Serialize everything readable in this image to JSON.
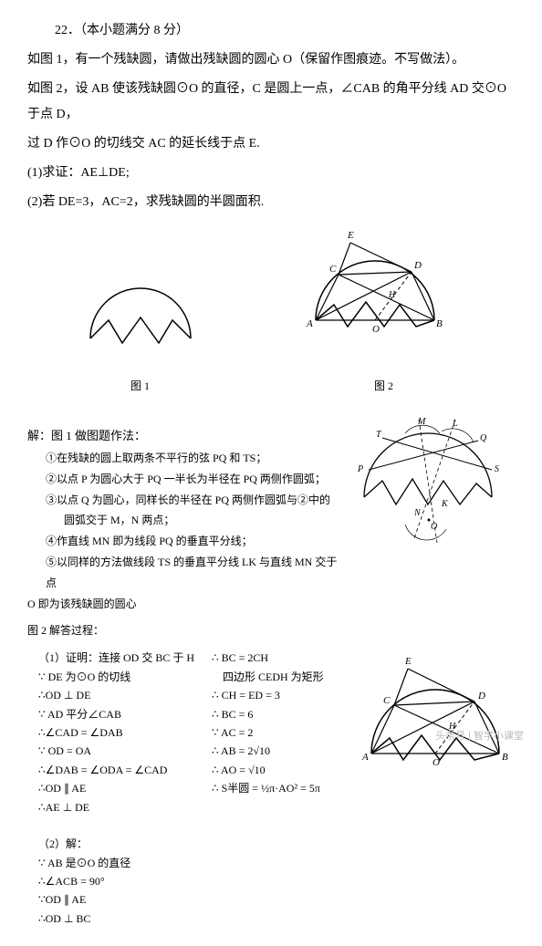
{
  "problem": {
    "number": "22．（本小题满分 8 分）",
    "line1": "如图 1，有一个残缺圆，请做出残缺圆的圆心 O（保留作图痕迹。不写做法）。",
    "line2": "如图 2，设 AB 使该残缺圆⊙O 的直径，C 是圆上一点，∠CAB 的角平分线 AD 交⊙O 于点 D，",
    "line3": "过 D 作⊙O 的切线交 AC 的延长线于点 E.",
    "q1": "(1)求证：AE⊥DE;",
    "q2": "(2)若 DE=3，AC=2，求残缺圆的半圆面积."
  },
  "figure_captions": {
    "fig1": "图 1",
    "fig2": "图 2"
  },
  "solution1": {
    "header": "解：图 1 做图题作法：",
    "s1": "①在残缺的圆上取两条不平行的弦 PQ 和 TS；",
    "s2": "②以点 P 为圆心大于 PQ 一半长为半径在 PQ 两侧作圆弧；",
    "s3": "③以点 Q 为圆心，同样长的半径在 PQ 两侧作圆弧与②中的",
    "s3b": "圆弧交于 M，N 两点；",
    "s4": "④作直线 MN 即为线段 PQ 的垂直平分线；",
    "s5": "⑤以同样的方法做线段 TS 的垂直平分线 LK 与直线 MN 交于点",
    "s5b": "O 即为该残缺圆的圆心"
  },
  "solution2": {
    "header": "图 2 解答过程：",
    "col1": [
      "（1）证明：连接 OD 交 BC 于 H",
      "∵ DE 为⊙O 的切线",
      "∴OD ⊥ DE",
      "∵ AD 平分∠CAB",
      "∴∠CAD = ∠DAB",
      "∵ OD = OA",
      "∴∠DAB = ∠ODA = ∠CAD",
      "∴OD ∥ AE",
      "∴AE ⊥ DE",
      "",
      "（2）解：",
      "∵ AB 是⊙O 的直径",
      "∴∠ACB = 90°",
      "∵OD ∥ AE",
      "∴OD ⊥ BC"
    ],
    "col2": [
      "∴ BC = 2CH",
      "　四边形 CEDH 为矩形",
      "∴ CH = ED = 3",
      "∴ BC = 6",
      "∵ AC = 2",
      "∴ AB = 2√10",
      "∴ AO = √10",
      "∴ S半圆 = ½π·AO² = 5π"
    ]
  },
  "labels": {
    "E": "E",
    "D": "D",
    "C": "C",
    "H": "H",
    "A": "A",
    "O": "O",
    "B": "B",
    "M": "M",
    "L": "L",
    "Q": "Q",
    "T": "T",
    "P": "P",
    "S": "S",
    "N": "N",
    "K": "K"
  },
  "watermark": "头条号 | 智学小课堂",
  "style": {
    "page_bg": "#ffffff",
    "text_color": "#000000",
    "body_fontsize": 14,
    "solution_fontsize": 12,
    "stroke": "#000000",
    "dash": "4,3"
  }
}
